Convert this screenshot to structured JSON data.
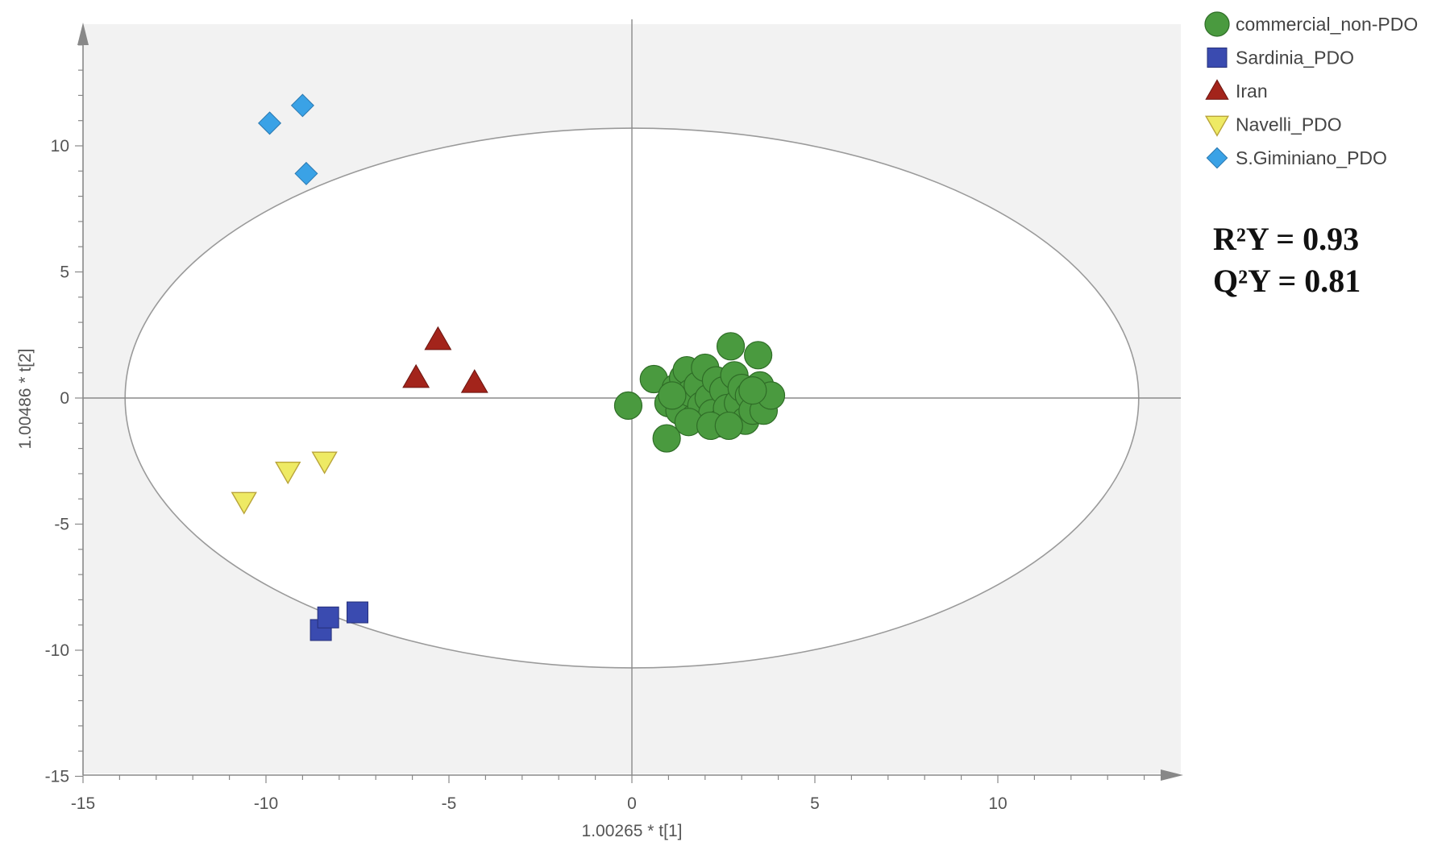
{
  "chart_data": {
    "type": "scatter",
    "xlabel": "1.00265 * t[1]",
    "ylabel": "1.00486 * t[2]",
    "xlim": [
      -15,
      15
    ],
    "ylim": [
      -15,
      15
    ],
    "x_ticks": [
      -15,
      -10,
      -5,
      0,
      5,
      10
    ],
    "y_ticks": [
      -15,
      -10,
      -5,
      0,
      5,
      10
    ],
    "grid": false,
    "legend_position": "top-right",
    "ellipse": {
      "rx": 13.85,
      "ry": 10.7
    },
    "series": [
      {
        "name": "commercial_non-PDO",
        "marker": "circle",
        "color": "#4a9a3f",
        "points": [
          [
            -0.1,
            -0.3
          ],
          [
            0.6,
            0.75
          ],
          [
            0.95,
            -1.6
          ],
          [
            1.0,
            -0.2
          ],
          [
            1.2,
            0.4
          ],
          [
            1.3,
            -0.5
          ],
          [
            1.4,
            0.8
          ],
          [
            1.5,
            1.1
          ],
          [
            1.6,
            0.2
          ],
          [
            1.7,
            -0.8
          ],
          [
            1.8,
            0.5
          ],
          [
            1.9,
            -0.3
          ],
          [
            2.0,
            1.2
          ],
          [
            2.1,
            0.0
          ],
          [
            2.2,
            -0.6
          ],
          [
            2.3,
            0.7
          ],
          [
            2.4,
            -1.0
          ],
          [
            2.5,
            0.3
          ],
          [
            2.6,
            -0.4
          ],
          [
            2.7,
            2.05
          ],
          [
            2.8,
            0.9
          ],
          [
            2.9,
            -0.2
          ],
          [
            3.0,
            0.4
          ],
          [
            3.1,
            -0.9
          ],
          [
            3.2,
            0.1
          ],
          [
            3.3,
            -0.5
          ],
          [
            3.45,
            1.7
          ],
          [
            3.5,
            0.5
          ],
          [
            3.6,
            -0.5
          ],
          [
            3.8,
            0.1
          ],
          [
            1.1,
            0.1
          ],
          [
            1.55,
            -0.95
          ],
          [
            2.15,
            -1.1
          ],
          [
            2.65,
            -1.1
          ],
          [
            3.3,
            0.3
          ]
        ]
      },
      {
        "name": "Sardinia_PDO",
        "marker": "square",
        "color": "#3a4bb0",
        "points": [
          [
            -8.5,
            -9.2
          ],
          [
            -8.3,
            -8.7
          ],
          [
            -7.5,
            -8.5
          ]
        ]
      },
      {
        "name": "Iran",
        "marker": "triangle-up",
        "color": "#a3241b",
        "points": [
          [
            -5.3,
            2.3
          ],
          [
            -5.9,
            0.8
          ],
          [
            -4.3,
            0.6
          ]
        ]
      },
      {
        "name": "Navelli_PDO",
        "marker": "triangle-down",
        "color": "#eeea64",
        "points": [
          [
            -10.6,
            -4.1
          ],
          [
            -9.4,
            -2.9
          ],
          [
            -8.4,
            -2.5
          ]
        ]
      },
      {
        "name": "S.Giminiano_PDO",
        "marker": "diamond",
        "color": "#3aa2e6",
        "points": [
          [
            -9.9,
            10.9
          ],
          [
            -9.0,
            11.6
          ],
          [
            -8.9,
            8.9
          ]
        ]
      }
    ]
  },
  "stats": {
    "r2y": "R²Y = 0.93",
    "q2y": "Q²Y = 0.81"
  }
}
